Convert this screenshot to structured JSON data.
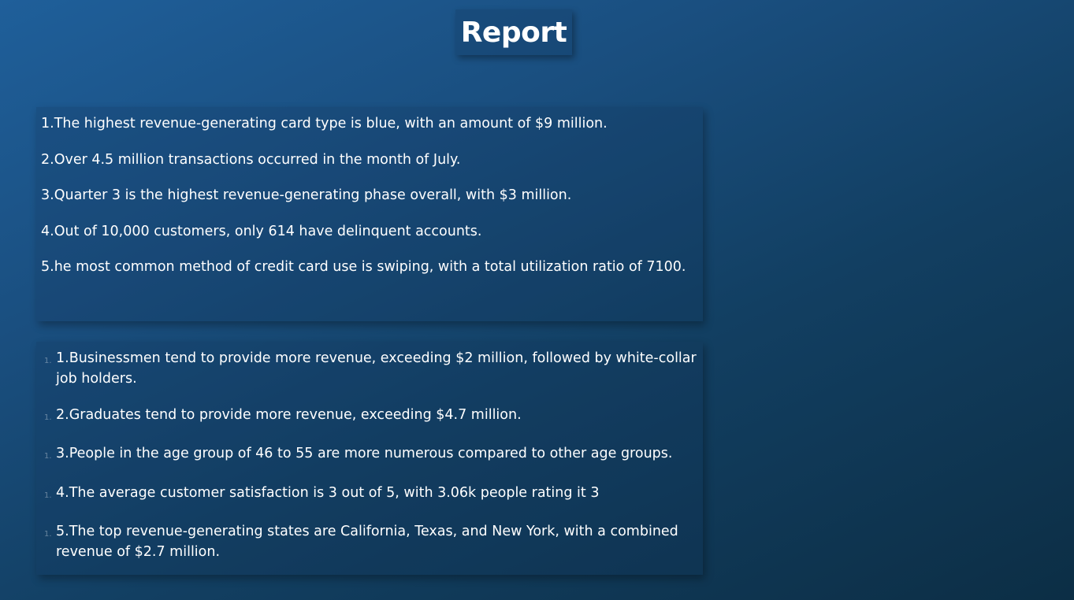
{
  "title": "Report",
  "panel_1": {
    "items": [
      "1.The highest revenue-generating card type is blue, with an amount of $9 million.",
      "2.Over 4.5 million transactions occurred in the month of July.",
      "3.Quarter 3 is the highest revenue-generating phase overall, with $3 million.",
      "4.Out of 10,000 customers, only 614 have delinquent accounts.",
      "5.he most common method of credit card use is swiping, with a total utilization ratio of 7100."
    ]
  },
  "panel_2": {
    "marker": "1.",
    "items": [
      "1.Businessmen tend to provide more revenue, exceeding $2 million, followed by white-collar job holders.",
      "2.Graduates tend to provide more revenue, exceeding $4.7 million.",
      "3.People in the age group of 46 to 55 are more numerous compared to other age groups.",
      "4.The average customer satisfaction is 3 out of 5, with 3.06k people rating it 3",
      "5.The top revenue-generating states are California, Texas, and New York, with a combined revenue of $2.7 million."
    ]
  }
}
